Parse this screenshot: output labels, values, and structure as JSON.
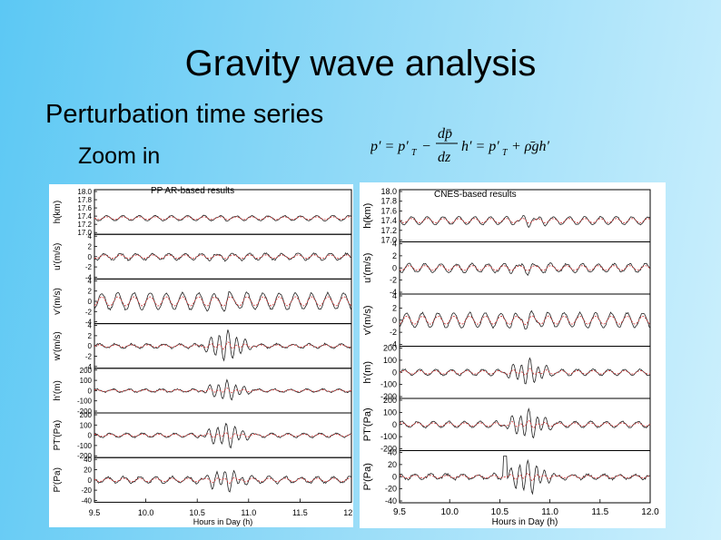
{
  "slide": {
    "title": "Gravity wave analysis",
    "subtitle": "Perturbation time series",
    "zoom_label": "Zoom in"
  },
  "colors": {
    "fit_line": "#d23c3c",
    "data_line": "#222222"
  },
  "chart_data": [
    {
      "type": "line",
      "title": "PP AR-based results",
      "xlabel": "Hours in Day (h)",
      "xlim": [
        9.5,
        12.0
      ],
      "xticks": [
        "9.5",
        "10.0",
        "10.5",
        "11.0",
        "11.5",
        "12.0"
      ],
      "panels": [
        {
          "ylabel": "h(km)",
          "ylim": [
            17.0,
            18.0
          ],
          "yticks": [
            "18.0",
            "17.8",
            "17.6",
            "17.4",
            "17.2",
            "17.0"
          ],
          "base": 17.35,
          "amp": 0.06,
          "burst": 0.02,
          "noise": 0.02
        },
        {
          "ylabel": "u'(m/s)",
          "ylim": [
            -4,
            4
          ],
          "yticks": [
            "4",
            "2",
            "0",
            "-2",
            "-4"
          ],
          "base": 0,
          "amp": 0.6,
          "burst": 0.2,
          "noise": 0.4
        },
        {
          "ylabel": "v'(m/s)",
          "ylim": [
            -4,
            4
          ],
          "yticks": [
            "4",
            "2",
            "0",
            "-2",
            "-4"
          ],
          "base": 0,
          "amp": 1.6,
          "burst": 0.6,
          "noise": 0.4
        },
        {
          "ylabel": "w'(m/s)",
          "ylim": [
            -4,
            4
          ],
          "yticks": [
            "4",
            "2",
            "0",
            "-2",
            "-4"
          ],
          "base": 0,
          "amp": 0.4,
          "burst": 2.8,
          "noise": 0.3
        },
        {
          "ylabel": "h'(m)",
          "ylim": [
            -200,
            200
          ],
          "yticks": [
            "200",
            "100",
            "0",
            "-100",
            "-200"
          ],
          "base": 0,
          "amp": 15,
          "burst": 90,
          "noise": 12
        },
        {
          "ylabel": "PT'(Pa)",
          "ylim": [
            -200,
            200
          ],
          "yticks": [
            "200",
            "100",
            "0",
            "-100",
            "-200"
          ],
          "base": 0,
          "amp": 20,
          "burst": 110,
          "noise": 10
        },
        {
          "ylabel": "P'(Pa)",
          "ylim": [
            -40,
            40
          ],
          "yticks": [
            "40",
            "20",
            "0",
            "-20",
            "-40"
          ],
          "base": 0,
          "amp": 6,
          "burst": 18,
          "noise": 4
        }
      ]
    },
    {
      "type": "line",
      "title": "CNES-based results",
      "xlabel": "Hours in Day (h)",
      "xlim": [
        9.5,
        12.0
      ],
      "xticks": [
        "9.5",
        "10.0",
        "10.5",
        "11.0",
        "11.5",
        "12.0"
      ],
      "panels": [
        {
          "ylabel": "h(km)",
          "ylim": [
            17.0,
            18.0
          ],
          "yticks": [
            "18.0",
            "17.8",
            "17.6",
            "17.4",
            "17.2",
            "17.0"
          ],
          "base": 17.4,
          "amp": 0.08,
          "burst": 0.06,
          "noise": 0.02
        },
        {
          "ylabel": "u'(m/s)",
          "ylim": [
            -4,
            4
          ],
          "yticks": [
            "4",
            "2",
            "0",
            "-2",
            "-4"
          ],
          "base": 0,
          "amp": 0.7,
          "burst": 0.4,
          "noise": 0.3
        },
        {
          "ylabel": "v'(m/s)",
          "ylim": [
            -4,
            4
          ],
          "yticks": [
            "4",
            "2",
            "0",
            "-2",
            "-4"
          ],
          "base": 0,
          "amp": 1.2,
          "burst": 0.6,
          "noise": 0.3
        },
        {
          "ylabel": "h'(m)",
          "ylim": [
            -200,
            200
          ],
          "yticks": [
            "200",
            "100",
            "0",
            "-100",
            "-200"
          ],
          "base": 0,
          "amp": 25,
          "burst": 95,
          "noise": 10
        },
        {
          "ylabel": "PT'(Pa)",
          "ylim": [
            -200,
            200
          ],
          "yticks": [
            "200",
            "100",
            "0",
            "-100",
            "-200"
          ],
          "base": 0,
          "amp": 25,
          "burst": 110,
          "noise": 10
        },
        {
          "ylabel": "P'(Pa)",
          "ylim": [
            -40,
            40
          ],
          "yticks": [
            "40",
            "20",
            "0",
            "-20",
            "-40"
          ],
          "base": 0,
          "amp": 4,
          "burst": 25,
          "noise": 4,
          "spike": true
        }
      ]
    }
  ]
}
